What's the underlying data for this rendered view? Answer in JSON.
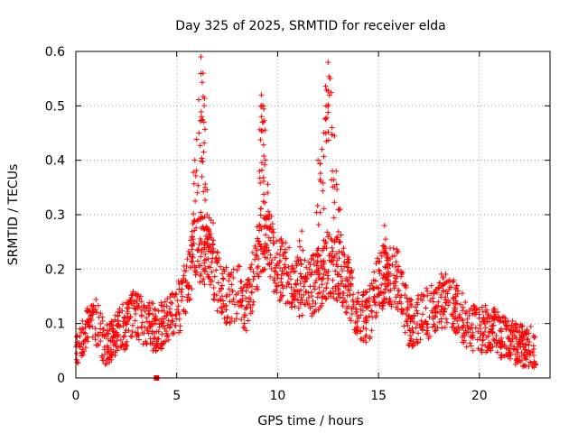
{
  "chart_data": {
    "type": "scatter",
    "title": "Day 325 of 2025, SRMTID for receiver elda",
    "xlabel": "GPS time / hours",
    "ylabel": "SRMTID / TECUs",
    "xlim": [
      0,
      23.5
    ],
    "ylim": [
      0,
      0.6
    ],
    "xticks": [
      "0",
      "5",
      "10",
      "15",
      "20"
    ],
    "xtick_values": [
      0,
      5,
      10,
      15,
      20
    ],
    "yticks": [
      "0",
      "0.1",
      "0.2",
      "0.3",
      "0.4",
      "0.5",
      "0.6"
    ],
    "ytick_values": [
      0,
      0.1,
      0.2,
      0.3,
      0.4,
      0.5,
      0.6
    ],
    "grid": true,
    "marker": "+",
    "color": "#ff0000",
    "zero_points": [
      [
        4.0,
        0.0
      ]
    ],
    "series": [
      {
        "name": "SRMTID",
        "profile": [
          [
            0.0,
            0.06
          ],
          [
            0.5,
            0.09
          ],
          [
            1.0,
            0.1
          ],
          [
            1.5,
            0.06
          ],
          [
            2.0,
            0.08
          ],
          [
            2.5,
            0.1
          ],
          [
            3.0,
            0.12
          ],
          [
            3.5,
            0.1
          ],
          [
            4.0,
            0.09
          ],
          [
            4.5,
            0.1
          ],
          [
            5.0,
            0.12
          ],
          [
            5.5,
            0.17
          ],
          [
            6.0,
            0.25
          ],
          [
            6.5,
            0.22
          ],
          [
            7.0,
            0.18
          ],
          [
            7.5,
            0.15
          ],
          [
            8.0,
            0.16
          ],
          [
            8.5,
            0.13
          ],
          [
            9.0,
            0.22
          ],
          [
            9.5,
            0.25
          ],
          [
            10.0,
            0.2
          ],
          [
            10.5,
            0.19
          ],
          [
            11.0,
            0.17
          ],
          [
            11.5,
            0.16
          ],
          [
            12.0,
            0.18
          ],
          [
            12.5,
            0.21
          ],
          [
            13.0,
            0.2
          ],
          [
            13.5,
            0.17
          ],
          [
            14.0,
            0.12
          ],
          [
            14.5,
            0.11
          ],
          [
            15.0,
            0.18
          ],
          [
            15.5,
            0.19
          ],
          [
            16.0,
            0.18
          ],
          [
            16.5,
            0.1
          ],
          [
            17.0,
            0.11
          ],
          [
            17.5,
            0.12
          ],
          [
            18.0,
            0.14
          ],
          [
            18.5,
            0.14
          ],
          [
            19.0,
            0.12
          ],
          [
            19.5,
            0.09
          ],
          [
            20.0,
            0.09
          ],
          [
            20.5,
            0.09
          ],
          [
            21.0,
            0.08
          ],
          [
            21.5,
            0.07
          ],
          [
            22.0,
            0.06
          ],
          [
            22.5,
            0.06
          ],
          [
            22.8,
            0.05
          ]
        ],
        "peaks": [
          [
            6.2,
            0.59
          ],
          [
            6.3,
            0.56
          ],
          [
            6.35,
            0.47
          ],
          [
            6.1,
            0.45
          ],
          [
            6.4,
            0.35
          ],
          [
            5.9,
            0.4
          ],
          [
            6.5,
            0.3
          ],
          [
            9.2,
            0.52
          ],
          [
            9.3,
            0.5
          ],
          [
            9.25,
            0.47
          ],
          [
            9.4,
            0.4
          ],
          [
            9.1,
            0.38
          ],
          [
            9.5,
            0.34
          ],
          [
            12.5,
            0.58
          ],
          [
            12.6,
            0.55
          ],
          [
            12.4,
            0.5
          ],
          [
            12.7,
            0.46
          ],
          [
            12.2,
            0.42
          ],
          [
            12.9,
            0.38
          ],
          [
            13.1,
            0.31
          ],
          [
            12.0,
            0.4
          ],
          [
            15.3,
            0.28
          ],
          [
            9.6,
            0.3
          ],
          [
            6.7,
            0.29
          ],
          [
            11.2,
            0.27
          ]
        ],
        "points_per_hour": 80,
        "scatter_spread": 0.05
      }
    ]
  }
}
